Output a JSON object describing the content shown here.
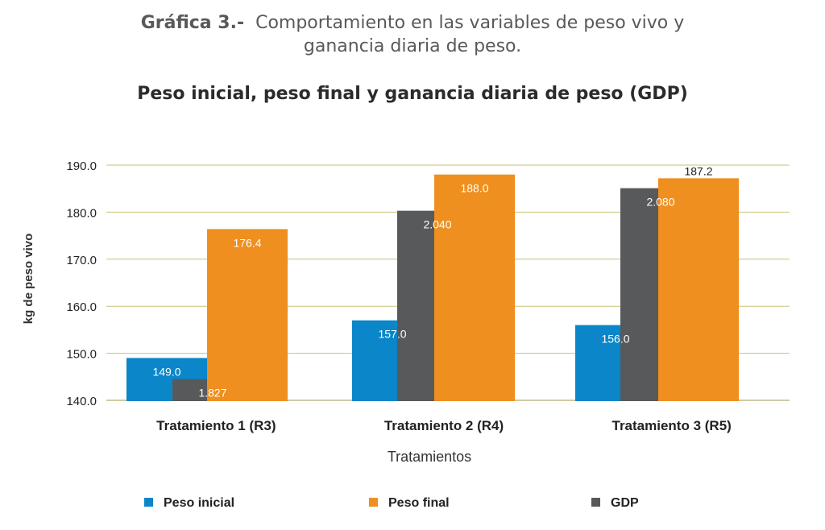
{
  "caption": {
    "label": "Gráfica 3.-",
    "line1": "Comportamiento en las variables de peso vivo y",
    "line2": "ganancia diaria de peso."
  },
  "chart_data": {
    "type": "bar",
    "title": "Peso inicial, peso final y ganancia diaria de peso  (GDP)",
    "xlabel": "Tratamientos",
    "ylabel": "kg de peso vivo",
    "ylim": [
      140,
      190
    ],
    "yticks": [
      "140.0",
      "150.0",
      "160.0",
      "170.0",
      "180.0",
      "190.0"
    ],
    "grid": true,
    "legend_position": "bottom",
    "categories": [
      "Tratamiento 1 (R3)",
      "Tratamiento 2 (R4)",
      "Tratamiento 3 (R5)"
    ],
    "series": [
      {
        "name": "Peso inicial",
        "color": "#0a86c9",
        "values": [
          149.0,
          157.0,
          156.0
        ],
        "labels": [
          "149.0",
          "157.0",
          "156.0"
        ],
        "label_color": "#ffffff"
      },
      {
        "name": "GDP",
        "color": "#58595b",
        "values": [
          144.5,
          180.3,
          185.1
        ],
        "labels": [
          "1.827",
          "2.040",
          "2.080"
        ],
        "label_color": "#ffffff"
      },
      {
        "name": "Peso final",
        "color": "#ef8f1f",
        "values": [
          176.4,
          188.0,
          187.2
        ],
        "labels": [
          "176.4",
          "188.0",
          "187.2"
        ],
        "label_color": "#ffffff"
      }
    ],
    "legend": [
      {
        "name": "Peso inicial",
        "color": "#0a86c9"
      },
      {
        "name": "Peso final",
        "color": "#ef8f1f"
      },
      {
        "name": "GDP",
        "color": "#58595b"
      }
    ]
  }
}
